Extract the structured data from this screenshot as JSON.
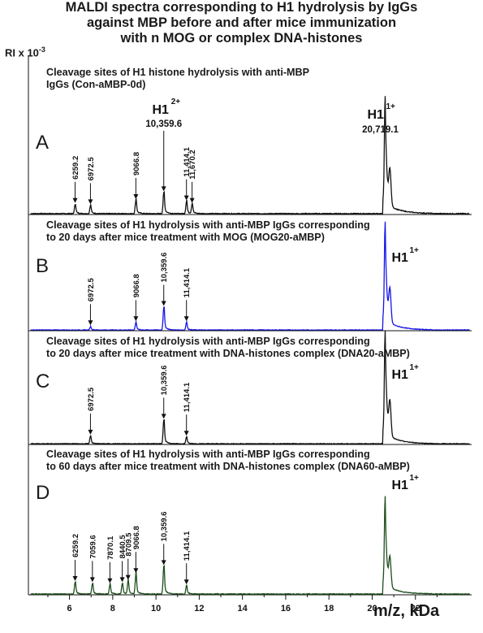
{
  "title_lines": [
    "MALDI spectra corresponding to H1 hydrolysis by IgGs",
    "against MBP before and after mice immunization",
    "with n MOG or complex DNA-histones"
  ],
  "y_axis_label": "RI x 10",
  "y_axis_exponent": "-3",
  "x_axis_label": "m/z, kDa",
  "chart_data": {
    "type": "line",
    "x_range": [
      4.1,
      24.6
    ],
    "x_ticks": [
      6,
      8,
      10,
      12,
      14,
      16,
      18,
      20,
      22
    ],
    "xlabel": "m/z, kDa",
    "ylabel": "RI x 10-3",
    "panels": [
      {
        "label": "A",
        "title_lines": [
          "Cleavage sites of H1 histone  hydrolysis with anti-MBP",
          "IgGs (Con-aMBP-0d)"
        ],
        "color": "#111111",
        "main_peak_label": "H1",
        "main_peak_charge": "1+",
        "main_peak_mass": "20,719.1",
        "double_charge_label": "H1",
        "double_charge_charge": "2+",
        "double_charge_mass": "10,359.6",
        "arrows": [
          {
            "x": 6.26,
            "label": "6259.2"
          },
          {
            "x": 6.97,
            "label": "6972.5"
          },
          {
            "x": 9.07,
            "label": "9066.8"
          },
          {
            "x": 11.41,
            "label": "11,414.1"
          },
          {
            "x": 11.67,
            "label": "11,670.2"
          }
        ],
        "peaks": [
          [
            6.26,
            0.07
          ],
          [
            6.97,
            0.06
          ],
          [
            9.07,
            0.1
          ],
          [
            10.36,
            0.16
          ],
          [
            11.41,
            0.09
          ],
          [
            11.67,
            0.07
          ],
          [
            20.6,
            0.82
          ]
        ]
      },
      {
        "label": "B",
        "title_lines": [
          "Cleavage sites of H1  hydrolysis with anti-MBP IgGs corresponding",
          "to 20 days after mice treatment  with MOG (MOG20-aMBP)"
        ],
        "color": "#1515e8",
        "main_peak_label": "H1",
        "main_peak_charge": "1+",
        "arrows": [
          {
            "x": 6.97,
            "label": "6972.5"
          },
          {
            "x": 9.07,
            "label": "9066.8"
          },
          {
            "x": 10.36,
            "label": "10,359.6"
          },
          {
            "x": 11.41,
            "label": "11,414.1"
          }
        ],
        "peaks": [
          [
            6.97,
            0.03
          ],
          [
            9.07,
            0.07
          ],
          [
            10.36,
            0.22
          ],
          [
            11.41,
            0.07
          ],
          [
            20.6,
            0.97
          ]
        ]
      },
      {
        "label": "C",
        "title_lines": [
          "Cleavage sites of H1  hydrolysis with anti-MBP IgGs corresponding",
          "to 20 days after mice treatment  with  DNA-histones complex (DNA20-aMBP)"
        ],
        "color": "#111111",
        "main_peak_label": "H1",
        "main_peak_charge": "1+",
        "arrows": [
          {
            "x": 6.97,
            "label": "6972.5"
          },
          {
            "x": 10.36,
            "label": "10,359.6"
          },
          {
            "x": 11.41,
            "label": "11,414.1"
          }
        ],
        "peaks": [
          [
            6.97,
            0.07
          ],
          [
            10.36,
            0.22
          ],
          [
            11.41,
            0.06
          ],
          [
            20.6,
            0.97
          ]
        ]
      },
      {
        "label": "D",
        "title_lines": [
          "Cleavage sites of H1  hydrolysis with anti-MBP IgGs corresponding",
          "to 60 days after mice treatment  with  DNA-histones complex (DNA60-aMBP)"
        ],
        "color": "#1d4d1d",
        "main_peak_label": "H1",
        "main_peak_charge": "1+",
        "arrows": [
          {
            "x": 6.26,
            "label": "6259.2"
          },
          {
            "x": 7.06,
            "label": "7059.6"
          },
          {
            "x": 7.87,
            "label": "7870.1"
          },
          {
            "x": 8.44,
            "label": "8440.5"
          },
          {
            "x": 8.71,
            "label": "8709.5"
          },
          {
            "x": 9.07,
            "label": "9066.8"
          },
          {
            "x": 10.36,
            "label": "10,359.6"
          },
          {
            "x": 11.41,
            "label": "11,414.1"
          }
        ],
        "peaks": [
          [
            6.26,
            0.1
          ],
          [
            7.06,
            0.09
          ],
          [
            7.87,
            0.08
          ],
          [
            8.44,
            0.09
          ],
          [
            8.71,
            0.11
          ],
          [
            9.07,
            0.17
          ],
          [
            10.36,
            0.24
          ],
          [
            11.41,
            0.07
          ],
          [
            20.6,
            0.78
          ]
        ]
      }
    ]
  }
}
